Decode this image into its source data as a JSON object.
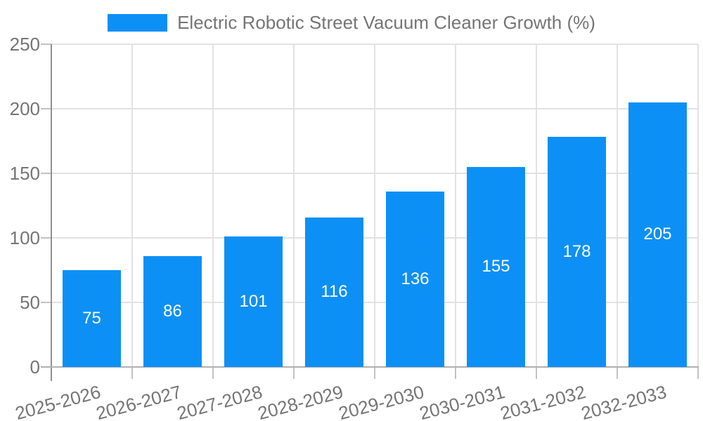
{
  "chart_data": {
    "type": "bar",
    "title": "Electric Robotic Street Vacuum Cleaner Growth (%)",
    "categories": [
      "2025-2026",
      "2026-2027",
      "2027-2028",
      "2028-2029",
      "2029-2030",
      "2030-2031",
      "2031-2032",
      "2032-2033"
    ],
    "values": [
      75,
      86,
      101,
      116,
      136,
      155,
      178,
      205
    ],
    "bar_value_labels": [
      "75",
      "86",
      "101",
      "116",
      "136",
      "155",
      "178",
      "205"
    ],
    "xlabel": "",
    "ylabel": "",
    "ylim": [
      0,
      250
    ],
    "yticks": [
      0,
      50,
      100,
      150,
      200,
      250
    ],
    "grid": true,
    "legend_position": "top-center",
    "x_label_rotation_deg": -15,
    "colors": {
      "bar": "#0d90f5",
      "grid": "#e2e2e2",
      "axis_y": "#909090",
      "axis_x": "#b0b0b0",
      "tick": "#c2c2c2",
      "text": "#757575",
      "bar_label": "#ffffff",
      "background": "#ffffff"
    }
  }
}
